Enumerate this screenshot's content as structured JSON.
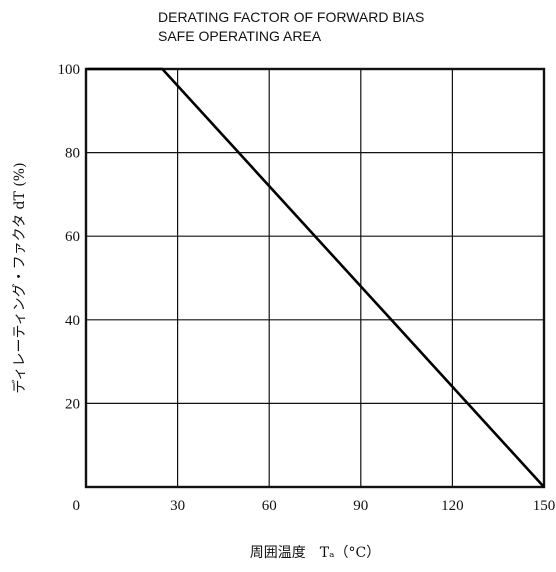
{
  "chart_data": {
    "type": "line",
    "title_lines": [
      "DERATING FACTOR OF FORWARD BIAS",
      "SAFE OPERATING AREA"
    ],
    "xlabel": "周囲温度　Tₐ（°C）",
    "ylabel": "ディレーティング・ファクタ dT (%)",
    "xlim": [
      0,
      150
    ],
    "ylim": [
      0,
      100
    ],
    "x_ticks": [
      0,
      30,
      60,
      90,
      120,
      150
    ],
    "y_ticks": [
      20,
      40,
      60,
      80,
      100
    ],
    "grid": true,
    "series": [
      {
        "x": [
          0,
          25,
          150
        ],
        "y": [
          100,
          100,
          0
        ]
      }
    ]
  }
}
